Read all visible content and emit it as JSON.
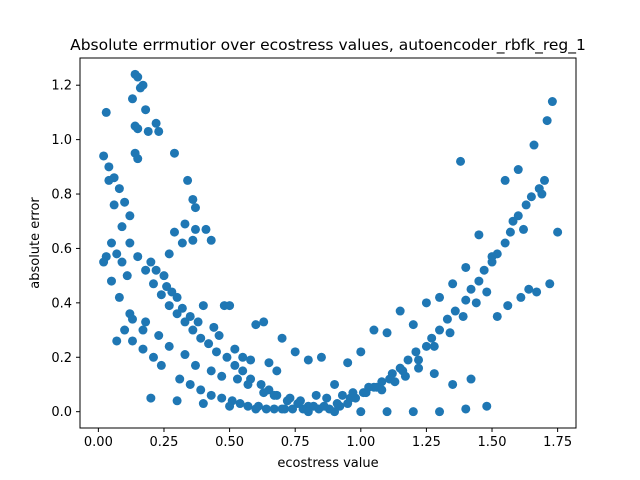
{
  "chart_data": {
    "type": "scatter",
    "title": "Absolute errmutior over ecostress values, autoencoder_rbfk_reg_1",
    "xlabel": "ecostress value",
    "ylabel": "absolute error",
    "xlim": [
      -0.07,
      1.82
    ],
    "ylim": [
      -0.06,
      1.3
    ],
    "xticks": [
      0.0,
      0.25,
      0.5,
      0.75,
      1.0,
      1.25,
      1.5,
      1.75
    ],
    "xtick_labels": [
      "0.00",
      "0.25",
      "0.50",
      "0.75",
      "1.00",
      "1.25",
      "1.50",
      "1.75"
    ],
    "yticks": [
      0.0,
      0.2,
      0.4,
      0.6,
      0.8,
      1.0,
      1.2
    ],
    "ytick_labels": [
      "0.0",
      "0.2",
      "0.4",
      "0.6",
      "0.8",
      "1.0",
      "1.2"
    ],
    "grid": false,
    "legend": "none",
    "marker_color": "#1f77b4",
    "series": [
      {
        "x": [
          0.03,
          0.14,
          0.15,
          0.17,
          0.16,
          0.18,
          0.13,
          0.14,
          0.15,
          0.19,
          0.22,
          0.23,
          0.14,
          0.15,
          0.29,
          0.34,
          0.36,
          0.37,
          0.33,
          0.29,
          0.41,
          0.43,
          0.37,
          0.36,
          0.32,
          0.27,
          0.02,
          0.04,
          0.06,
          0.08,
          0.1,
          0.12,
          0.05,
          0.07,
          0.09,
          0.11,
          0.03,
          0.02,
          0.05,
          0.08,
          0.12,
          0.18,
          0.2,
          0.22,
          0.25,
          0.26,
          0.28,
          0.3,
          0.32,
          0.35,
          0.38,
          0.4,
          0.44,
          0.46,
          0.48,
          0.5,
          0.52,
          0.55,
          0.58,
          0.6,
          0.63,
          0.65,
          0.68,
          0.7,
          0.75,
          0.8,
          0.85,
          0.9,
          0.95,
          1.0,
          1.05,
          1.1,
          1.15,
          1.2,
          1.25,
          1.3,
          1.35,
          1.4,
          1.45,
          1.5,
          1.55,
          1.6,
          1.65,
          1.7,
          1.38,
          1.66,
          1.71,
          1.73,
          1.75,
          1.68,
          1.69,
          1.63,
          1.62,
          1.58,
          1.57,
          1.6,
          1.55,
          1.52,
          1.5,
          1.47,
          1.45,
          1.42,
          1.4,
          1.36,
          1.33,
          1.3,
          1.27,
          1.25,
          1.21,
          1.18,
          1.15,
          1.12,
          1.08,
          1.05,
          1.02,
          0.98,
          0.95,
          0.92,
          0.88,
          0.84,
          0.8,
          0.76,
          0.72,
          0.68,
          0.65,
          0.62,
          0.58,
          0.55,
          0.52,
          0.49,
          0.45,
          0.42,
          0.39,
          0.36,
          0.33,
          0.3,
          0.27,
          0.24,
          0.21,
          0.18,
          0.15,
          0.12,
          0.09,
          0.06,
          0.04,
          0.1,
          0.13,
          0.17,
          0.21,
          0.24,
          0.31,
          0.35,
          0.39,
          0.43,
          0.47,
          0.51,
          0.54,
          0.57,
          0.61,
          0.64,
          0.67,
          0.71,
          0.74,
          0.78,
          0.82,
          0.86,
          0.91,
          0.96,
          1.01,
          1.06,
          1.11,
          1.16,
          1.22,
          1.28,
          1.34,
          1.39,
          1.44,
          1.48,
          1.52,
          1.56,
          1.61,
          1.64,
          1.67,
          1.72,
          0.2,
          0.3,
          0.4,
          0.5,
          0.6,
          0.7,
          0.8,
          0.9,
          1.0,
          1.1,
          1.2,
          1.3,
          1.4,
          1.48,
          1.42,
          1.35,
          1.28,
          1.22,
          1.17,
          1.13,
          1.08,
          1.03,
          0.97,
          0.93,
          0.87,
          0.83,
          0.77,
          0.73,
          0.67,
          0.63,
          0.57,
          0.53,
          0.47,
          0.43,
          0.37,
          0.33,
          0.27,
          0.23,
          0.17,
          0.13,
          0.07
        ],
        "y": [
          1.1,
          1.24,
          1.23,
          1.2,
          1.19,
          1.11,
          1.15,
          1.05,
          1.04,
          1.03,
          1.06,
          1.03,
          0.95,
          0.93,
          0.95,
          0.85,
          0.78,
          0.75,
          0.69,
          0.66,
          0.67,
          0.63,
          0.67,
          0.63,
          0.62,
          0.58,
          0.94,
          0.9,
          0.86,
          0.82,
          0.77,
          0.72,
          0.62,
          0.58,
          0.55,
          0.5,
          0.57,
          0.55,
          0.48,
          0.42,
          0.36,
          0.33,
          0.55,
          0.52,
          0.5,
          0.46,
          0.44,
          0.42,
          0.38,
          0.35,
          0.33,
          0.39,
          0.31,
          0.28,
          0.39,
          0.39,
          0.23,
          0.2,
          0.19,
          0.32,
          0.33,
          0.18,
          0.15,
          0.27,
          0.22,
          0.19,
          0.2,
          0.1,
          0.18,
          0.22,
          0.3,
          0.29,
          0.37,
          0.32,
          0.4,
          0.42,
          0.47,
          0.53,
          0.65,
          0.55,
          0.85,
          0.89,
          0.79,
          0.85,
          0.92,
          0.98,
          1.07,
          1.14,
          0.66,
          0.82,
          0.8,
          0.76,
          0.67,
          0.7,
          0.66,
          0.72,
          0.62,
          0.58,
          0.57,
          0.52,
          0.48,
          0.45,
          0.41,
          0.37,
          0.34,
          0.3,
          0.27,
          0.24,
          0.22,
          0.19,
          0.16,
          0.14,
          0.11,
          0.09,
          0.07,
          0.05,
          0.03,
          0.02,
          0.01,
          0.01,
          0.02,
          0.03,
          0.04,
          0.06,
          0.08,
          0.1,
          0.12,
          0.15,
          0.17,
          0.2,
          0.22,
          0.25,
          0.27,
          0.3,
          0.33,
          0.36,
          0.39,
          0.43,
          0.47,
          0.52,
          0.57,
          0.62,
          0.68,
          0.76,
          0.85,
          0.3,
          0.26,
          0.23,
          0.2,
          0.17,
          0.12,
          0.1,
          0.08,
          0.06,
          0.05,
          0.04,
          0.03,
          0.02,
          0.02,
          0.01,
          0.01,
          0.01,
          0.01,
          0.01,
          0.02,
          0.02,
          0.03,
          0.05,
          0.07,
          0.09,
          0.12,
          0.15,
          0.19,
          0.24,
          0.29,
          0.35,
          0.4,
          0.44,
          0.35,
          0.39,
          0.42,
          0.45,
          0.44,
          0.47,
          0.05,
          0.04,
          0.03,
          0.02,
          0.01,
          0.01,
          0.0,
          0.0,
          0.0,
          0.0,
          0.0,
          0.0,
          0.01,
          0.02,
          0.12,
          0.1,
          0.14,
          0.16,
          0.13,
          0.11,
          0.08,
          0.09,
          0.07,
          0.06,
          0.05,
          0.06,
          0.04,
          0.05,
          0.06,
          0.07,
          0.1,
          0.12,
          0.13,
          0.15,
          0.17,
          0.21,
          0.24,
          0.28,
          0.3,
          0.34,
          0.26
        ]
      }
    ]
  }
}
